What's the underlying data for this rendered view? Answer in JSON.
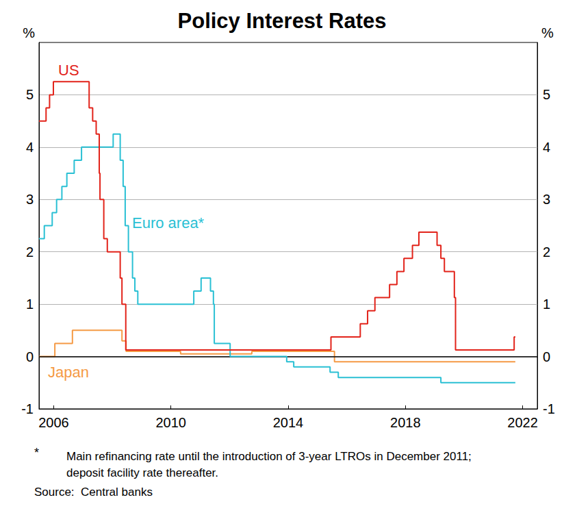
{
  "chart_data": {
    "type": "line",
    "title": "Policy Interest Rates",
    "y_label": "%",
    "y2_label": "%",
    "line_style": "step",
    "grid": true,
    "xlim": [
      2006,
      2023
    ],
    "xticks": [
      {
        "value": 2006.5,
        "label": "2006"
      },
      {
        "value": 2010.5,
        "label": "2010"
      },
      {
        "value": 2014.5,
        "label": "2014"
      },
      {
        "value": 2018.5,
        "label": "2018"
      },
      {
        "value": 2022.5,
        "label": "2022"
      }
    ],
    "ylim": [
      -1,
      6
    ],
    "yticks": [
      -1,
      0,
      1,
      2,
      3,
      4,
      5
    ],
    "y2lim": [
      -1,
      6
    ],
    "y2ticks": [
      -1,
      0,
      1,
      2,
      3,
      4,
      5
    ],
    "series": [
      {
        "name": "US",
        "color": "#e2231a",
        "x": [
          2006.0,
          2006.24,
          2006.36,
          2006.49,
          2007.71,
          2007.83,
          2007.95,
          2008.055,
          2008.08,
          2008.21,
          2008.33,
          2008.77,
          2008.83,
          2008.96,
          2015.96,
          2016.96,
          2017.21,
          2017.46,
          2017.96,
          2018.21,
          2018.45,
          2018.74,
          2018.96,
          2019.58,
          2019.71,
          2019.83,
          2020.17,
          2020.21,
          2022.21,
          2022.25
        ],
        "values": [
          4.5,
          4.75,
          5.0,
          5.25,
          4.75,
          4.5,
          4.25,
          3.5,
          3.0,
          2.25,
          2.0,
          1.5,
          1.0,
          0.125,
          0.375,
          0.625,
          0.875,
          1.125,
          1.375,
          1.625,
          1.875,
          2.125,
          2.375,
          2.125,
          1.875,
          1.625,
          1.125,
          0.125,
          0.375,
          0.375
        ]
      },
      {
        "name": "Euro area*",
        "color": "#2ac0d4",
        "x": [
          2006.0,
          2006.18,
          2006.45,
          2006.6,
          2006.78,
          2006.95,
          2007.2,
          2007.45,
          2008.53,
          2008.77,
          2008.87,
          2008.94,
          2009.05,
          2009.19,
          2009.27,
          2009.37,
          2011.28,
          2011.53,
          2011.85,
          2011.95,
          2011.98,
          2012.52,
          2014.45,
          2014.69,
          2015.93,
          2016.21,
          2019.71,
          2022.25
        ],
        "values": [
          2.25,
          2.5,
          2.75,
          3.0,
          3.25,
          3.5,
          3.75,
          4.0,
          4.25,
          3.75,
          3.25,
          2.5,
          2.0,
          1.5,
          1.25,
          1.0,
          1.25,
          1.5,
          1.25,
          1.0,
          0.25,
          0.0,
          -0.1,
          -0.2,
          -0.3,
          -0.4,
          -0.5,
          -0.5
        ]
      },
      {
        "name": "Japan",
        "color": "#f59a45",
        "x": [
          2006.0,
          2006.54,
          2007.14,
          2008.83,
          2008.97,
          2010.83,
          2013.26,
          2016.08,
          2022.25
        ],
        "values": [
          0.0,
          0.25,
          0.5,
          0.3,
          0.1,
          0.05,
          0.1,
          -0.1,
          -0.1
        ]
      }
    ],
    "footnote": {
      "marker": "*",
      "text": "Main refinancing rate until the introduction of 3-year LTROs in December 2011; deposit facility rate thereafter."
    },
    "source": "Source:  Central banks"
  }
}
